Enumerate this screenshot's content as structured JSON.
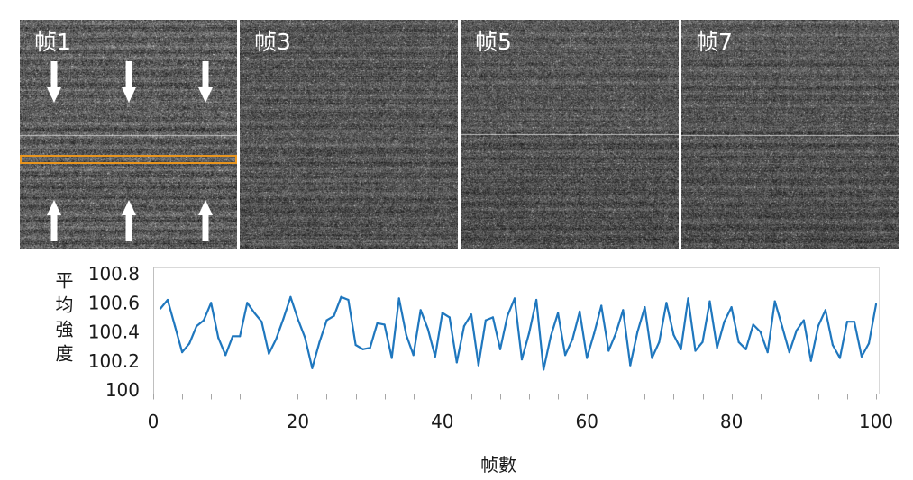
{
  "figure": {
    "frames": [
      {
        "label": "帧1"
      },
      {
        "label": "帧3"
      },
      {
        "label": "帧5"
      },
      {
        "label": "帧7"
      }
    ],
    "icons": {
      "down_arrow": "down-arrow-icon",
      "up_arrow": "up-arrow-icon"
    },
    "colors": {
      "arrow": "#FFFFFF",
      "highlight_band": "#E8951F",
      "frame_label": "#FFFFFF"
    }
  },
  "chart_data": {
    "type": "line",
    "xlabel": "帧數",
    "ylabel": "平均強度",
    "xlim": [
      0,
      100
    ],
    "ylim": [
      100,
      100.8
    ],
    "xticks": [
      "0",
      "20",
      "40",
      "60",
      "80",
      "100"
    ],
    "yticks": [
      "100",
      "100.2",
      "100.4",
      "100.6",
      "100.8"
    ],
    "grid": false,
    "legend": false,
    "x": [
      1,
      2,
      3,
      4,
      5,
      6,
      7,
      8,
      9,
      10,
      11,
      12,
      13,
      14,
      15,
      16,
      17,
      18,
      19,
      20,
      21,
      22,
      23,
      24,
      25,
      26,
      27,
      28,
      29,
      30,
      31,
      32,
      33,
      34,
      35,
      36,
      37,
      38,
      39,
      40,
      41,
      42,
      43,
      44,
      45,
      46,
      47,
      48,
      49,
      50,
      51,
      52,
      53,
      54,
      55,
      56,
      57,
      58,
      59,
      60,
      61,
      62,
      63,
      64,
      65,
      66,
      67,
      68,
      69,
      70,
      71,
      72,
      73,
      74,
      75,
      76,
      77,
      78,
      79,
      80,
      81,
      82,
      83,
      84,
      85,
      86,
      87,
      88,
      89,
      90,
      91,
      92,
      93,
      94,
      95,
      96,
      97,
      98,
      99,
      100
    ],
    "series": [
      {
        "color": "#1F77BE",
        "values": [
          100.56,
          100.62,
          100.44,
          100.26,
          100.32,
          100.44,
          100.48,
          100.6,
          100.36,
          100.24,
          100.37,
          100.37,
          100.6,
          100.53,
          100.47,
          100.25,
          100.35,
          100.49,
          100.64,
          100.49,
          100.36,
          100.15,
          100.33,
          100.48,
          100.51,
          100.64,
          100.62,
          100.31,
          100.28,
          100.29,
          100.46,
          100.45,
          100.22,
          100.63,
          100.38,
          100.24,
          100.55,
          100.42,
          100.23,
          100.53,
          100.5,
          100.19,
          100.44,
          100.52,
          100.17,
          100.48,
          100.5,
          100.28,
          100.51,
          100.63,
          100.21,
          100.39,
          100.62,
          100.14,
          100.37,
          100.53,
          100.24,
          100.35,
          100.54,
          100.22,
          100.39,
          100.58,
          100.27,
          100.39,
          100.55,
          100.17,
          100.4,
          100.57,
          100.22,
          100.33,
          100.6,
          100.38,
          100.28,
          100.63,
          100.27,
          100.33,
          100.61,
          100.29,
          100.47,
          100.57,
          100.33,
          100.28,
          100.45,
          100.4,
          100.26,
          100.61,
          100.44,
          100.26,
          100.41,
          100.48,
          100.2,
          100.44,
          100.55,
          100.31,
          100.22,
          100.47,
          100.47,
          100.23,
          100.32,
          100.59
        ]
      }
    ]
  }
}
